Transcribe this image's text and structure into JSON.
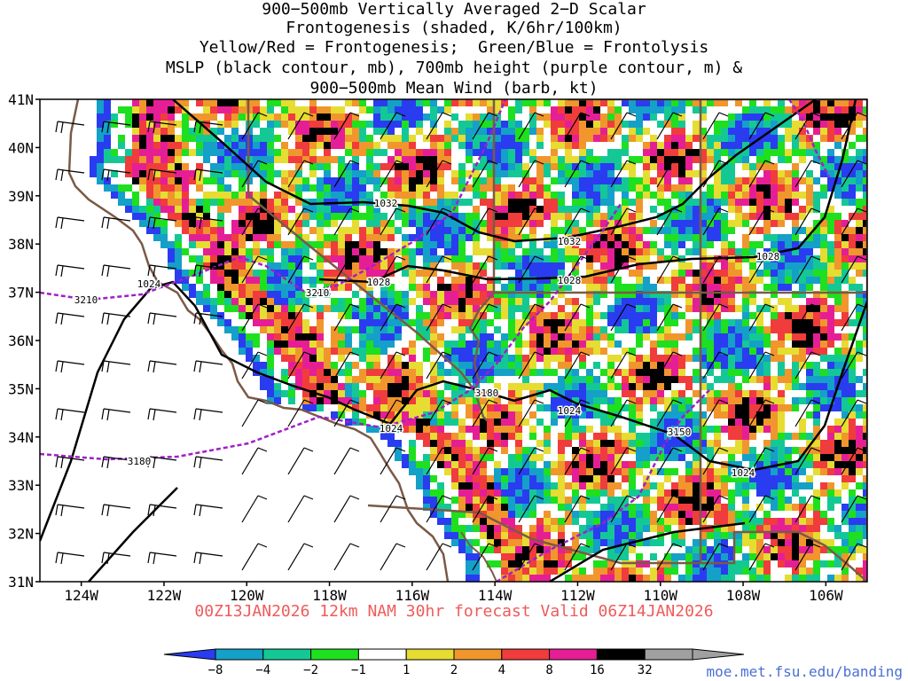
{
  "title_lines": [
    "900−500mb Vertically Averaged 2−D Scalar",
    "Frontogenesis (shaded, K/6hr/100km)",
    "Yellow/Red = Frontogenesis;  Green/Blue = Frontolysis",
    "MSLP (black contour, mb), 700mb height (purple contour, m) &",
    "900−500mb Mean Wind (barb, kt)"
  ],
  "forecast_label": "00Z13JAN2026 12km NAM 30hr forecast Valid 06Z14JAN2026",
  "credit": "moe.met.fsu.edu/banding",
  "map": {
    "lon_range": [
      -125,
      -105
    ],
    "lat_range": [
      31,
      41
    ],
    "lat_ticks": [
      "41N",
      "40N",
      "39N",
      "38N",
      "37N",
      "36N",
      "35N",
      "34N",
      "33N",
      "32N",
      "31N"
    ],
    "lon_ticks": [
      "124W",
      "122W",
      "120W",
      "118W",
      "116W",
      "114W",
      "112W",
      "110W",
      "108W",
      "106W"
    ],
    "mslp_labels": [
      "1032",
      "1032",
      "1028",
      "1028",
      "1028",
      "1024",
      "1024",
      "1024",
      "1024",
      "1024"
    ],
    "height_labels": [
      "3210",
      "3210",
      "3180",
      "3180",
      "3150"
    ]
  },
  "colorbar": {
    "tick_labels": [
      "−8",
      "−4",
      "−2",
      "−1",
      "1",
      "2",
      "4",
      "8",
      "16",
      "32"
    ],
    "colors": [
      "#2a3cf0",
      "#14a0c8",
      "#14c896",
      "#1ee01e",
      "#ffffff",
      "#e6dc32",
      "#f0962d",
      "#f03c3c",
      "#e61e96",
      "#000000",
      "#a0a0a0"
    ]
  },
  "colors": {
    "mslp_contour": "#000000",
    "height_contour": "#a020c8",
    "borders": "#7a5a46",
    "footer": "#f05a5a",
    "credit": "#4a6fd6"
  }
}
